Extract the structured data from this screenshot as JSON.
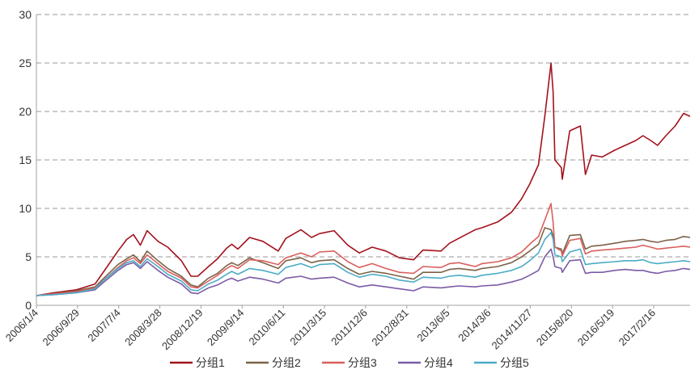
{
  "chart_data": {
    "type": "line",
    "title": "",
    "xlabel": "",
    "ylabel": "",
    "ylim": [
      0,
      30
    ],
    "yticks": [
      0,
      5,
      10,
      15,
      20,
      25,
      30
    ],
    "grid": "horizontal dashed",
    "legend_position": "bottom",
    "xticklabels": [
      "2006/1/4",
      "2006/9/29",
      "2007/7/4",
      "2008/3/28",
      "2008/12/19",
      "2009/9/14",
      "2010/6/11",
      "2011/3/15",
      "2011/12/6",
      "2012/8/31",
      "2013/6/5",
      "2014/3/6",
      "2014/11/27",
      "2015/8/20",
      "2016/5/19",
      "2017/2/16"
    ],
    "x": [
      "2006-01-04",
      "2006-05-01",
      "2006-09-29",
      "2007-02-01",
      "2007-04-01",
      "2007-07-04",
      "2007-09-01",
      "2007-10-16",
      "2007-12-01",
      "2008-01-15",
      "2008-03-28",
      "2008-06-01",
      "2008-09-01",
      "2008-11-04",
      "2008-12-19",
      "2009-03-01",
      "2009-05-01",
      "2009-07-01",
      "2009-08-04",
      "2009-09-14",
      "2009-12-01",
      "2010-03-01",
      "2010-06-11",
      "2010-08-01",
      "2010-11-10",
      "2011-01-20",
      "2011-03-15",
      "2011-06-20",
      "2011-09-20",
      "2011-12-06",
      "2012-03-01",
      "2012-06-01",
      "2012-08-31",
      "2012-12-04",
      "2013-02-05",
      "2013-06-05",
      "2013-08-01",
      "2013-10-01",
      "2014-01-20",
      "2014-03-06",
      "2014-06-20",
      "2014-09-20",
      "2014-11-27",
      "2015-01-20",
      "2015-03-20",
      "2015-05-01",
      "2015-06-12",
      "2015-06-26",
      "2015-07-08",
      "2015-08-20",
      "2015-08-26",
      "2015-10-15",
      "2015-12-25",
      "2016-01-28",
      "2016-03-10",
      "2016-05-19",
      "2016-08-10",
      "2016-10-20",
      "2016-12-30",
      "2017-02-16",
      "2017-04-10",
      "2017-05-25",
      "2017-07-20",
      "2017-09-20",
      "2017-11-15",
      "2017-12-29"
    ],
    "series": [
      {
        "name": "分组1",
        "color": "#a3121c",
        "values": [
          1.0,
          1.3,
          1.6,
          2.2,
          3.5,
          5.6,
          6.8,
          7.3,
          6.2,
          7.7,
          6.6,
          6.0,
          4.6,
          3.0,
          3.0,
          4.0,
          4.8,
          5.9,
          6.3,
          5.8,
          7.0,
          6.6,
          5.6,
          6.9,
          7.8,
          7.0,
          7.4,
          7.7,
          6.2,
          5.4,
          6.0,
          5.6,
          4.9,
          4.7,
          5.7,
          5.6,
          6.4,
          6.9,
          7.8,
          8.0,
          8.6,
          9.6,
          11.0,
          12.5,
          14.5,
          19.5,
          25.0,
          22.0,
          15.0,
          14.2,
          13.0,
          18.0,
          18.5,
          13.5,
          15.5,
          15.3,
          16.0,
          16.5,
          17.0,
          17.5,
          17.0,
          16.5,
          17.5,
          18.5,
          19.8,
          19.5
        ]
      },
      {
        "name": "分组2",
        "color": "#7c6248",
        "values": [
          1.0,
          1.2,
          1.5,
          1.9,
          2.8,
          4.2,
          4.8,
          5.2,
          4.5,
          5.6,
          4.6,
          3.8,
          3.0,
          2.1,
          1.9,
          2.8,
          3.3,
          4.1,
          4.4,
          4.1,
          4.9,
          4.4,
          3.8,
          4.6,
          4.9,
          4.4,
          4.6,
          4.7,
          3.8,
          3.2,
          3.5,
          3.3,
          3.0,
          2.7,
          3.4,
          3.4,
          3.7,
          3.8,
          3.6,
          3.8,
          4.0,
          4.4,
          5.0,
          5.6,
          6.3,
          8.0,
          7.8,
          7.2,
          6.0,
          5.8,
          5.3,
          7.2,
          7.3,
          5.8,
          6.1,
          6.2,
          6.4,
          6.6,
          6.7,
          6.8,
          6.6,
          6.5,
          6.7,
          6.8,
          7.1,
          7.0
        ]
      },
      {
        "name": "分组3",
        "color": "#d95f5c",
        "values": [
          1.0,
          1.2,
          1.4,
          1.8,
          2.6,
          3.9,
          4.6,
          4.9,
          4.3,
          5.2,
          4.3,
          3.5,
          2.8,
          1.9,
          1.8,
          2.5,
          3.1,
          3.8,
          4.1,
          3.8,
          4.7,
          4.6,
          4.2,
          4.9,
          5.4,
          5.0,
          5.5,
          5.6,
          4.5,
          3.9,
          4.3,
          3.8,
          3.4,
          3.3,
          4.0,
          3.9,
          4.3,
          4.4,
          4.0,
          4.3,
          4.5,
          4.9,
          5.5,
          6.3,
          7.1,
          8.8,
          10.5,
          8.5,
          6.0,
          5.6,
          5.1,
          6.7,
          6.9,
          5.3,
          5.6,
          5.7,
          5.8,
          5.9,
          6.0,
          6.2,
          6.0,
          5.8,
          5.9,
          6.0,
          6.1,
          6.0
        ]
      },
      {
        "name": "分组4",
        "color": "#7b5ba6",
        "values": [
          1.0,
          1.1,
          1.3,
          1.6,
          2.4,
          3.6,
          4.2,
          4.4,
          3.8,
          4.5,
          3.6,
          2.9,
          2.2,
          1.3,
          1.2,
          1.8,
          2.1,
          2.6,
          2.8,
          2.5,
          2.9,
          2.7,
          2.3,
          2.8,
          3.0,
          2.7,
          2.8,
          2.9,
          2.3,
          1.9,
          2.1,
          1.9,
          1.7,
          1.5,
          1.9,
          1.8,
          1.9,
          2.0,
          1.9,
          2.0,
          2.1,
          2.4,
          2.7,
          3.1,
          3.6,
          5.0,
          5.8,
          5.0,
          4.0,
          3.8,
          3.4,
          4.6,
          4.7,
          3.3,
          3.4,
          3.4,
          3.6,
          3.7,
          3.6,
          3.6,
          3.4,
          3.3,
          3.5,
          3.6,
          3.8,
          3.7
        ]
      },
      {
        "name": "分组5",
        "color": "#4bacc6",
        "values": [
          1.0,
          1.1,
          1.3,
          1.7,
          2.6,
          3.8,
          4.4,
          4.6,
          4.0,
          4.8,
          4.0,
          3.2,
          2.5,
          1.6,
          1.5,
          2.2,
          2.6,
          3.2,
          3.5,
          3.2,
          3.8,
          3.6,
          3.2,
          3.9,
          4.3,
          3.9,
          4.2,
          4.3,
          3.4,
          2.9,
          3.2,
          3.0,
          2.6,
          2.4,
          2.9,
          2.8,
          3.0,
          3.1,
          2.9,
          3.1,
          3.3,
          3.6,
          4.0,
          4.6,
          5.4,
          6.8,
          7.5,
          6.8,
          5.2,
          5.0,
          4.5,
          5.5,
          5.8,
          4.2,
          4.3,
          4.4,
          4.5,
          4.6,
          4.6,
          4.7,
          4.4,
          4.3,
          4.4,
          4.5,
          4.6,
          4.5
        ]
      }
    ]
  }
}
